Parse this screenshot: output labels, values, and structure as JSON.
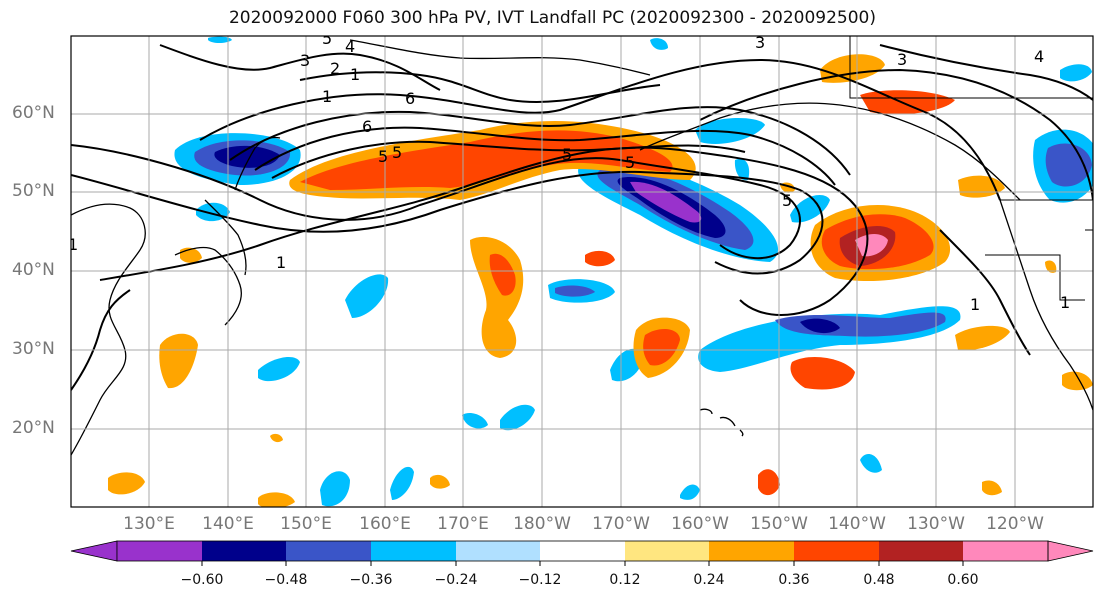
{
  "title": "2020092000 F060 300 hPa PV, IVT Landfall PC (2020092300 - 2020092500)",
  "latitude_labels": [
    "60°N",
    "50°N",
    "40°N",
    "30°N",
    "20°N"
  ],
  "longitude_labels": [
    "130°E",
    "140°E",
    "150°E",
    "160°E",
    "170°E",
    "180°W",
    "170°W",
    "160°W",
    "150°W",
    "140°W",
    "130°W",
    "120°W"
  ],
  "pv_contour_labels": [
    "3",
    "2",
    "1",
    "4",
    "5",
    "1",
    "5",
    "6",
    "5",
    "5",
    "5",
    "3",
    "3",
    "4",
    "1",
    "1",
    "1",
    "1",
    "6",
    "5"
  ],
  "colorbar": {
    "tick_labels": [
      "−0.60",
      "−0.48",
      "−0.36",
      "−0.24",
      "−0.12",
      "0.12",
      "0.24",
      "0.36",
      "0.48",
      "0.60"
    ],
    "colors": [
      "#9932cc",
      "#00008b",
      "#3a55c8",
      "#00bfff",
      "#b0e0ff",
      "#ffffff",
      "#ffe680",
      "#ffa500",
      "#ff4500",
      "#b22222",
      "#ff88bb"
    ]
  }
}
